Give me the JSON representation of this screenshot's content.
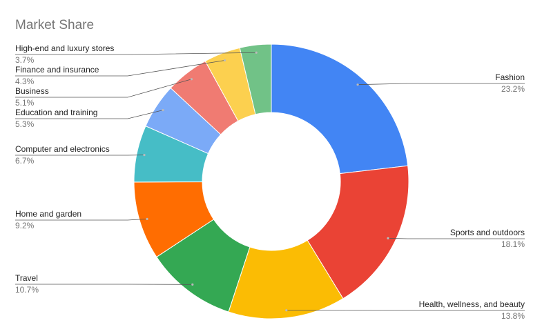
{
  "chart_data": {
    "type": "donut",
    "title": "Market Share",
    "categories": [
      "Fashion",
      "Sports and outdoors",
      "Health, wellness, and beauty",
      "Travel",
      "Home and garden",
      "Computer and electronics",
      "Education and training",
      "Business",
      "Finance and insurance",
      "High-end and luxury stores"
    ],
    "values": [
      23.2,
      18.1,
      13.8,
      10.7,
      9.2,
      6.7,
      5.3,
      5.1,
      4.3,
      3.7
    ],
    "value_labels": [
      "23.2%",
      "18.1%",
      "13.8%",
      "10.7%",
      "9.2%",
      "6.7%",
      "5.3%",
      "5.1%",
      "4.3%",
      "3.7%"
    ],
    "colors": [
      "#4285f4",
      "#ea4335",
      "#fbbc04",
      "#34a853",
      "#ff6d01",
      "#46bdc6",
      "#7baaf7",
      "#f07b72",
      "#fcd04f",
      "#71c287"
    ]
  }
}
